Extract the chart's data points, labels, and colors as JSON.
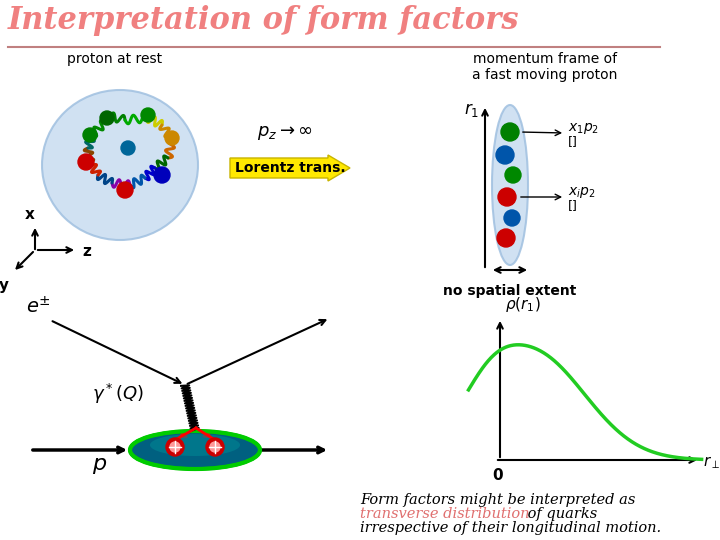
{
  "title": "Interpretation of form factors",
  "title_color": "#F08080",
  "bg_color": "#FFFFFF",
  "subtitle_left": "proton at rest",
  "subtitle_right": "momentum frame of\na fast moving proton",
  "lorentz_label": "Lorentz trans.",
  "pz_label": "$p_z \\rightarrow \\infty$",
  "no_spatial": "no spatial extent",
  "bottom_text1": "Form factors might be interpreted as",
  "bottom_text_red": "transverse distribution",
  "bottom_text2": " of quarks",
  "bottom_text3": "irrespective of their longitudinal motion.",
  "r_perp_label": "$r_\\perp$",
  "rho_label": "$\\rho(r_1)$",
  "zero_label": "0"
}
